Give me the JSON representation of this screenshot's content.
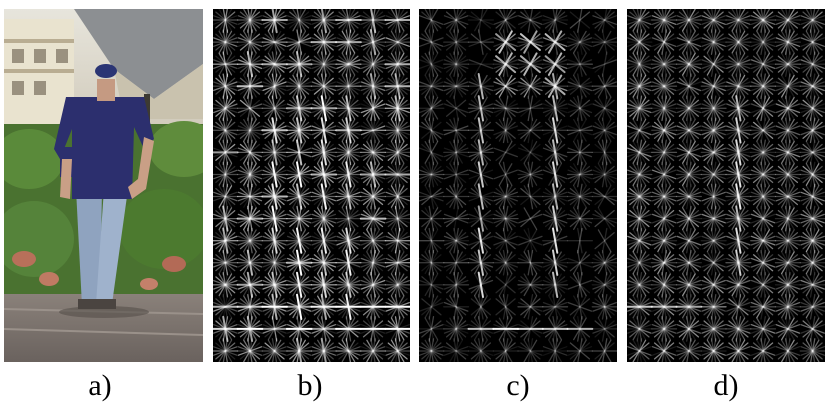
{
  "panels": [
    {
      "id": "a",
      "label": "a)",
      "kind": "photo"
    },
    {
      "id": "b",
      "label": "b)",
      "kind": "hog-full"
    },
    {
      "id": "c",
      "label": "c)",
      "kind": "hog-positive"
    },
    {
      "id": "d",
      "label": "d)",
      "kind": "hog-negative"
    }
  ],
  "colors": {
    "background": "#ffffff",
    "hog_background": "#000000",
    "hog_stroke": "#ffffff",
    "shirt": "#2c2f6e",
    "jeans": "#8ea2bf",
    "foliage": "#4f7a32",
    "sky": "#d9d5c7",
    "ground": "#7d7570"
  }
}
